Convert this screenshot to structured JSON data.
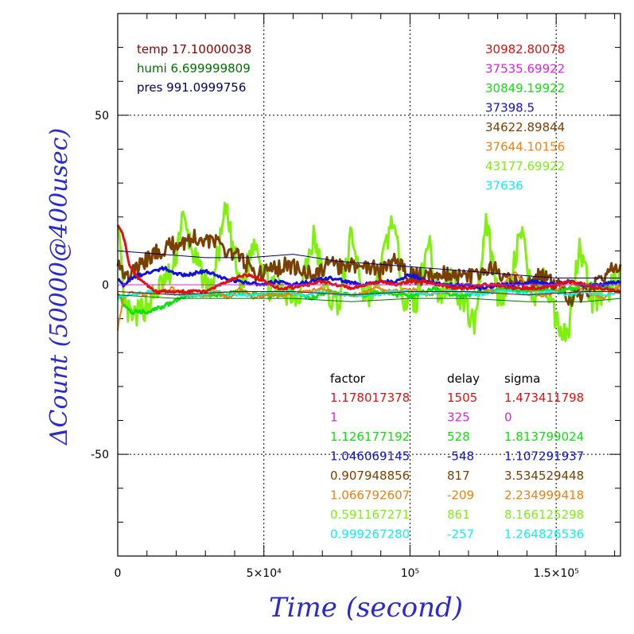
{
  "chart_data": {
    "type": "line",
    "xlabel": "Time (second)",
    "ylabel": "ΔCount (50000@400usec)",
    "xlim": [
      0,
      172000
    ],
    "ylim": [
      -80,
      80
    ],
    "x_ticks": [
      {
        "value": 0,
        "label": "0"
      },
      {
        "value": 50000,
        "label": "5×10⁴"
      },
      {
        "value": 100000,
        "label": "10⁵"
      },
      {
        "value": 150000,
        "label": "1.5×10⁵"
      }
    ],
    "y_ticks": [
      {
        "value": 50,
        "label": "50"
      },
      {
        "value": 0,
        "label": "0"
      },
      {
        "value": -50,
        "label": "-50"
      }
    ],
    "grid": true,
    "env_text": [
      {
        "text": "temp 17.10000038",
        "color": "#8b0000"
      },
      {
        "text": "humi 6.699999809",
        "color": "#007000"
      },
      {
        "text": "pres 991.0999756",
        "color": "#00006e"
      }
    ],
    "legend_values": [
      {
        "text": "30982.80078",
        "color": "#e01010"
      },
      {
        "text": "37535.69922",
        "color": "#e020e0"
      },
      {
        "text": "30849.19922",
        "color": "#10e010"
      },
      {
        "text": "37398.5",
        "color": "#1010e0"
      },
      {
        "text": "34622.89844",
        "color": "#7a4000"
      },
      {
        "text": "37644.10156",
        "color": "#f08010"
      },
      {
        "text": "43177.69922",
        "color": "#80f010"
      },
      {
        "text": "37636",
        "color": "#10f0f0"
      }
    ],
    "stats_headers": [
      "factor",
      "delay",
      "sigma"
    ],
    "stats_rows": [
      {
        "color": "#e01010",
        "factor": "1.178017378",
        "delay": "1505",
        "sigma": "1.473411798"
      },
      {
        "color": "#e020e0",
        "factor": "1",
        "delay": "325",
        "sigma": "0"
      },
      {
        "color": "#10e010",
        "factor": "1.126177192",
        "delay": "528",
        "sigma": "1.813799024"
      },
      {
        "color": "#1010e0",
        "factor": "1.046069145",
        "delay": "-548",
        "sigma": "1.107291937"
      },
      {
        "color": "#7a4000",
        "factor": "0.907948856",
        "delay": "817",
        "sigma": "3.534529448"
      },
      {
        "color": "#f08010",
        "factor": "1.066792607",
        "delay": "-209",
        "sigma": "2.234999418"
      },
      {
        "color": "#80f010",
        "factor": "0.591167271",
        "delay": "861",
        "sigma": "8.166125298"
      },
      {
        "color": "#10f0f0",
        "factor": "0.999267280",
        "delay": "-257",
        "sigma": "1.264826536"
      }
    ],
    "series": [
      {
        "color": "#80f010",
        "width": 3,
        "noise": 4,
        "x": [
          0,
          2000,
          5000,
          10000,
          15000,
          19000,
          22000,
          27000,
          32000,
          37000,
          42000,
          47000,
          52000,
          57000,
          62000,
          67000,
          72000,
          76000,
          80000,
          84000,
          88000,
          94000,
          98000,
          102000,
          106000,
          110000,
          114000,
          118000,
          122000,
          126000,
          130000,
          134000,
          138000,
          142000,
          146000,
          150000,
          154000,
          158000,
          162000,
          167000,
          172000
        ],
        "y": [
          20,
          -6,
          -10,
          -6,
          0,
          4,
          20,
          6,
          -2,
          22,
          -2,
          14,
          -1,
          -2,
          -3,
          14,
          -4,
          -5,
          15,
          -2,
          -3,
          20,
          -4,
          -6,
          14,
          -4,
          2,
          -5,
          -12,
          20,
          -3,
          -1,
          16,
          -4,
          2,
          -10,
          -15,
          13,
          -5,
          -3,
          5
        ]
      },
      {
        "color": "#7a4000",
        "width": 3,
        "noise": 2.5,
        "x": [
          0,
          3000,
          8000,
          14000,
          20000,
          27000,
          32000,
          38000,
          42000,
          48000,
          52000,
          58000,
          63000,
          68000,
          72000,
          78000,
          84000,
          90000,
          95000,
          100000,
          105000,
          110000,
          116000,
          122000,
          128000,
          134000,
          140000,
          145000,
          150000,
          155000,
          160000,
          165000,
          172000
        ],
        "y": [
          8,
          2,
          6,
          10,
          12,
          14,
          13,
          10,
          8,
          3,
          4,
          6,
          4,
          3,
          6,
          5,
          6,
          4,
          7,
          3,
          2,
          4,
          3,
          2,
          5,
          1,
          0,
          3,
          0,
          -4,
          -2,
          2,
          6
        ]
      },
      {
        "color": "#10e010",
        "width": 3,
        "noise": 0.6,
        "x": [
          0,
          2000,
          5000,
          9000,
          14000,
          19000,
          24000,
          30000,
          36000,
          42000,
          48000,
          54000,
          60000,
          66000,
          72000,
          78000,
          84000,
          90000,
          96000,
          102000,
          108000,
          114000,
          120000,
          126000,
          132000,
          138000,
          144000,
          150000,
          156000,
          162000,
          168000,
          172000
        ],
        "y": [
          -2,
          -6,
          -8,
          -8,
          -7,
          -5,
          -3,
          -3,
          -3,
          -2,
          -3,
          -3,
          -2,
          -4,
          -2,
          -3,
          -3,
          -2,
          -3,
          -3,
          -1,
          -3,
          -3,
          -2,
          -1,
          -2,
          -1,
          -2,
          -1,
          0,
          -1,
          -2
        ]
      },
      {
        "color": "#f08010",
        "width": 2,
        "noise": 0.5,
        "x": [
          0,
          2000,
          5000,
          9000,
          14000,
          19000,
          24000,
          30000,
          34000,
          38000,
          42000,
          46000,
          52000,
          58000,
          64000,
          70000,
          76000,
          82000,
          88000,
          94000,
          100000,
          106000,
          112000,
          118000,
          124000,
          130000,
          136000,
          142000,
          148000,
          154000,
          160000,
          166000,
          172000
        ],
        "y": [
          -13,
          -4,
          -2,
          -3,
          -2,
          -1,
          -3,
          -3,
          -2,
          -4,
          -1,
          -4,
          -3,
          -3,
          -2,
          -1,
          -3,
          -3,
          -1,
          -2,
          -1,
          -3,
          -2,
          0,
          -1,
          -2,
          4,
          -3,
          -3,
          1,
          -2,
          -4,
          0
        ]
      },
      {
        "color": "#10f0f0",
        "width": 2,
        "noise": 0.5,
        "x": [
          0,
          4000,
          10000,
          16000,
          22000,
          28000,
          34000,
          40000,
          46000,
          52000,
          58000,
          64000,
          70000,
          76000,
          82000,
          88000,
          94000,
          100000,
          106000,
          112000,
          118000,
          124000,
          130000,
          136000,
          142000,
          148000,
          154000,
          160000,
          166000,
          172000
        ],
        "y": [
          -4,
          -3,
          -2,
          -2,
          -3,
          -3,
          -2,
          -3,
          -3,
          -2,
          -2,
          -3,
          -2,
          -3,
          -3,
          -3,
          -2,
          -2,
          -3,
          -2,
          -2,
          -3,
          -2,
          -2,
          -3,
          -2,
          -3,
          -2,
          -3,
          -2
        ]
      },
      {
        "color": "#1010e0",
        "width": 3,
        "noise": 0.5,
        "x": [
          0,
          2000,
          5000,
          8000,
          12000,
          16000,
          20000,
          24000,
          30000,
          36000,
          42000,
          48000,
          54000,
          60000,
          66000,
          72000,
          78000,
          84000,
          90000,
          96000,
          100000,
          106000,
          112000,
          118000,
          124000,
          130000,
          136000,
          142000,
          148000,
          154000,
          160000,
          166000,
          172000
        ],
        "y": [
          2,
          0,
          2,
          3,
          4,
          5,
          3,
          3,
          4,
          2,
          1,
          0,
          1,
          0,
          1,
          2,
          1,
          0,
          1,
          1,
          3,
          1,
          0,
          0,
          -1,
          0,
          0,
          1,
          0,
          1,
          0,
          0,
          1
        ]
      },
      {
        "color": "#e01010",
        "width": 3,
        "noise": 0.4,
        "x": [
          0,
          2000,
          4000,
          7000,
          10000,
          13000,
          16000,
          20000,
          25000,
          30000,
          35000,
          40000,
          45000,
          50000,
          55000,
          60000,
          65000,
          70000,
          75000,
          80000,
          85000,
          90000,
          95000,
          100000,
          105000,
          110000,
          115000,
          120000,
          125000,
          130000,
          135000,
          140000,
          145000,
          150000,
          155000,
          160000,
          165000,
          172000
        ],
        "y": [
          18,
          14,
          6,
          2,
          0,
          -2,
          -2,
          -2,
          -2,
          -2,
          0,
          2,
          3,
          1,
          -1,
          -1,
          0,
          1,
          0,
          -1,
          0,
          1,
          0,
          1,
          1,
          0,
          -1,
          -1,
          0,
          0,
          -1,
          -1,
          -1,
          0,
          1,
          0,
          -1,
          -2
        ]
      },
      {
        "color": "#e020e0",
        "width": 1,
        "noise": 0,
        "x": [
          0,
          172000
        ],
        "y": [
          0,
          0
        ]
      },
      {
        "color": "#8b0000",
        "width": 1,
        "noise": 0,
        "x": [
          0,
          20000,
          40000,
          60000,
          80000,
          100000,
          120000,
          140000,
          160000,
          172000
        ],
        "y": [
          -2,
          -3,
          -2,
          -2,
          -3,
          -2,
          -2,
          -3,
          -2,
          -2
        ]
      },
      {
        "color": "#007000",
        "width": 1,
        "noise": 0,
        "x": [
          0,
          20000,
          40000,
          60000,
          80000,
          100000,
          120000,
          140000,
          160000,
          172000
        ],
        "y": [
          -3,
          -4,
          -4,
          -4,
          -5,
          -4,
          -4,
          -5,
          -5,
          -4
        ]
      },
      {
        "color": "#00006e",
        "width": 1,
        "noise": 0,
        "x": [
          0,
          15000,
          30000,
          45000,
          60000,
          75000,
          90000,
          105000,
          120000,
          135000,
          150000,
          172000
        ],
        "y": [
          10,
          9,
          8,
          8,
          9,
          7,
          6,
          5,
          4,
          3,
          2,
          2
        ]
      }
    ]
  }
}
